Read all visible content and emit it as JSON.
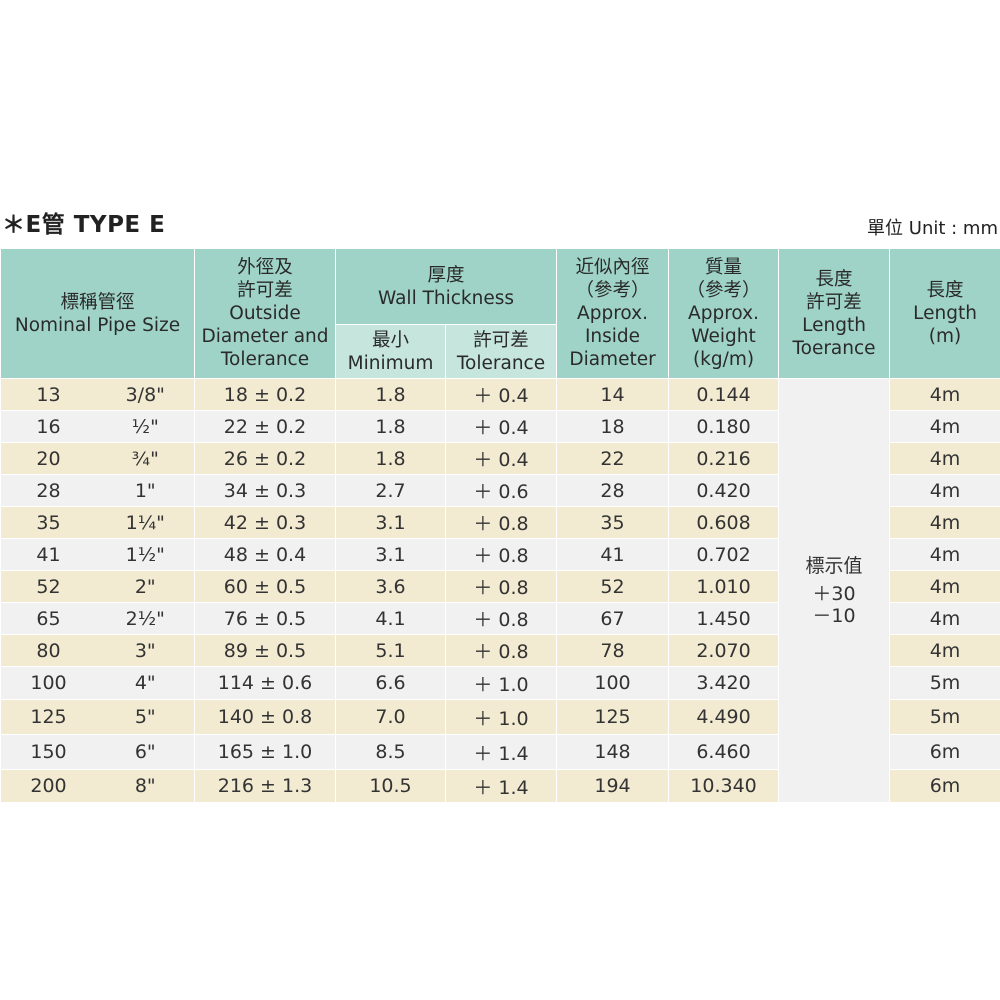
{
  "title": "＊E管  TYPE E",
  "unit": "單位 Unit : mm",
  "header": {
    "nominal": [
      "標稱管徑",
      "Nominal Pipe Size"
    ],
    "outside": [
      "外徑及",
      "許可差",
      "Outside",
      "Diameter and",
      "Tolerance"
    ],
    "wall": [
      "厚度",
      "Wall Thickness"
    ],
    "wall_min": [
      "最小",
      "Minimum"
    ],
    "wall_tol": [
      "許可差",
      "Tolerance"
    ],
    "inside": [
      "近似內徑",
      "（參考）",
      "Approx.",
      "Inside",
      "Diameter"
    ],
    "weight": [
      "質量",
      "（參考）",
      "Approx.",
      "Weight",
      "(kg/m)"
    ],
    "length_tol": [
      "長度",
      "許可差",
      "Length",
      "Toerance"
    ],
    "length": [
      "長度",
      "Length",
      "(m)"
    ]
  },
  "length_tolerance_value": [
    "標示值",
    "＋30",
    "－10"
  ],
  "rows": [
    {
      "mm": "13",
      "inch": "3/8\"",
      "od": "18 ± 0.2",
      "min": "1.8",
      "tol": "＋ 0.4",
      "id": "14",
      "weight": "0.144",
      "length": "4m"
    },
    {
      "mm": "16",
      "inch": "½\"",
      "od": "22 ± 0.2",
      "min": "1.8",
      "tol": "＋ 0.4",
      "id": "18",
      "weight": "0.180",
      "length": "4m"
    },
    {
      "mm": "20",
      "inch": "¾\"",
      "od": "26 ± 0.2",
      "min": "1.8",
      "tol": "＋ 0.4",
      "id": "22",
      "weight": "0.216",
      "length": "4m"
    },
    {
      "mm": "28",
      "inch": "1\"",
      "od": "34 ± 0.3",
      "min": "2.7",
      "tol": "＋ 0.6",
      "id": "28",
      "weight": "0.420",
      "length": "4m"
    },
    {
      "mm": "35",
      "inch": "1¼\"",
      "od": "42 ± 0.3",
      "min": "3.1",
      "tol": "＋ 0.8",
      "id": "35",
      "weight": "0.608",
      "length": "4m"
    },
    {
      "mm": "41",
      "inch": "1½\"",
      "od": "48 ± 0.4",
      "min": "3.1",
      "tol": "＋ 0.8",
      "id": "41",
      "weight": "0.702",
      "length": "4m"
    },
    {
      "mm": "52",
      "inch": "2\"",
      "od": "60 ± 0.5",
      "min": "3.6",
      "tol": "＋ 0.8",
      "id": "52",
      "weight": "1.010",
      "length": "4m"
    },
    {
      "mm": "65",
      "inch": "2½\"",
      "od": "76  ± 0.5",
      "min": "4.1",
      "tol": "＋ 0.8",
      "id": "67",
      "weight": "1.450",
      "length": "4m"
    },
    {
      "mm": "80",
      "inch": "3\"",
      "od": "89 ± 0.5",
      "min": "5.1",
      "tol": "＋ 0.8",
      "id": "78",
      "weight": "2.070",
      "length": "4m"
    },
    {
      "mm": "100",
      "inch": "4\"",
      "od": "114 ± 0.6",
      "min": "6.6",
      "tol": "＋ 1.0",
      "id": "100",
      "weight": "3.420",
      "length": "5m"
    },
    {
      "mm": "125",
      "inch": "5\"",
      "od": "140 ± 0.8",
      "min": "7.0",
      "tol": "＋ 1.0",
      "id": "125",
      "weight": "4.490",
      "length": "5m"
    },
    {
      "mm": "150",
      "inch": "6\"",
      "od": "165 ± 1.0",
      "min": "8.5",
      "tol": "＋ 1.4",
      "id": "148",
      "weight": "6.460",
      "length": "6m"
    },
    {
      "mm": "200",
      "inch": "8\"",
      "od": "216 ± 1.3",
      "min": "10.5",
      "tol": "＋ 1.4",
      "id": "194",
      "weight": "10.340",
      "length": "6m"
    }
  ],
  "colors": {
    "header": "#9fd3c7",
    "subheader": "#c6e5dd",
    "row_odd": "#f2ebd2",
    "row_even": "#f1f1f1"
  }
}
